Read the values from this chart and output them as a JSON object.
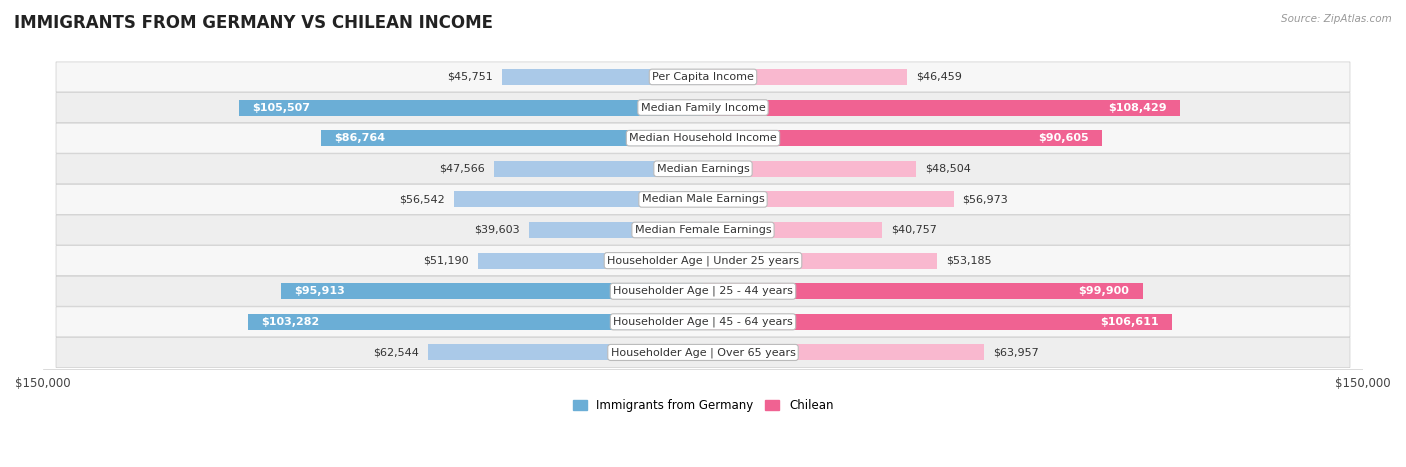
{
  "title": "IMMIGRANTS FROM GERMANY VS CHILEAN INCOME",
  "source": "Source: ZipAtlas.com",
  "categories": [
    "Per Capita Income",
    "Median Family Income",
    "Median Household Income",
    "Median Earnings",
    "Median Male Earnings",
    "Median Female Earnings",
    "Householder Age | Under 25 years",
    "Householder Age | 25 - 44 years",
    "Householder Age | 45 - 64 years",
    "Householder Age | Over 65 years"
  ],
  "germany_values": [
    45751,
    105507,
    86764,
    47566,
    56542,
    39603,
    51190,
    95913,
    103282,
    62544
  ],
  "chilean_values": [
    46459,
    108429,
    90605,
    48504,
    56973,
    40757,
    53185,
    99900,
    106611,
    63957
  ],
  "germany_labels": [
    "$45,751",
    "$105,507",
    "$86,764",
    "$47,566",
    "$56,542",
    "$39,603",
    "$51,190",
    "$95,913",
    "$103,282",
    "$62,544"
  ],
  "chilean_labels": [
    "$46,459",
    "$108,429",
    "$90,605",
    "$48,504",
    "$56,973",
    "$40,757",
    "$53,185",
    "$99,900",
    "$106,611",
    "$63,957"
  ],
  "germany_color_light": "#aac9e8",
  "germany_color_dark": "#6baed6",
  "chilean_color_light": "#f9b8cf",
  "chilean_color_dark": "#f06292",
  "max_val": 150000,
  "bar_height": 0.52,
  "background_color": "#ffffff",
  "row_colors": [
    "#f7f7f7",
    "#eeeeee"
  ],
  "title_fontsize": 12,
  "label_fontsize": 8,
  "category_fontsize": 8,
  "axis_label": "$150,000",
  "legend_germany": "Immigrants from Germany",
  "legend_chilean": "Chilean",
  "inside_label_threshold": 70000
}
